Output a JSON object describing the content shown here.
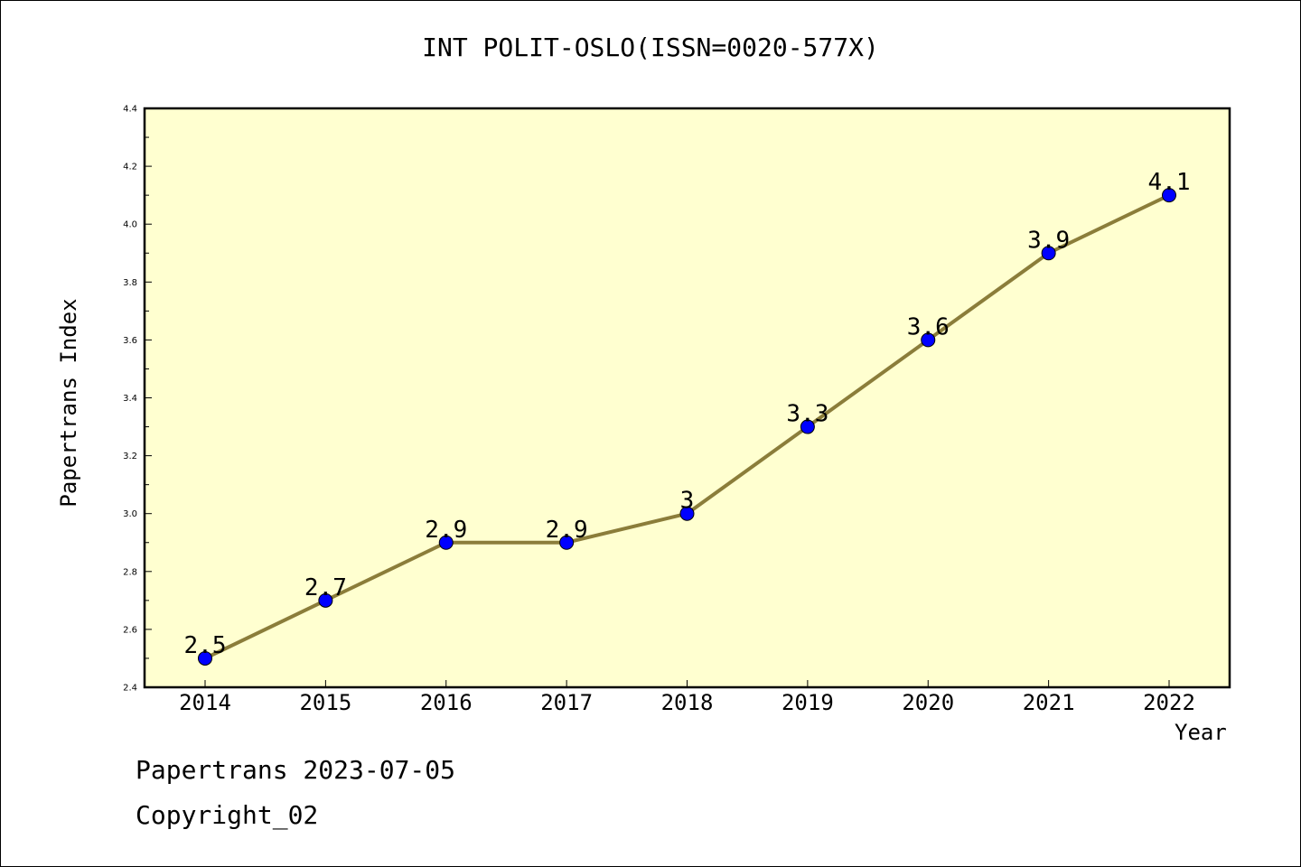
{
  "title": "INT POLIT-OSLO(ISSN=0020-577X)",
  "footer": {
    "line1": "Papertrans 2023-07-05",
    "line2": "Copyright_02"
  },
  "colors": {
    "plot_background": "#ffffd0",
    "line": "#8b7d3a",
    "marker": "#0000ff",
    "marker_edge": "#000000"
  },
  "chart_data": {
    "type": "line",
    "title": "INT POLIT-OSLO(ISSN=0020-577X)",
    "xlabel": "Year",
    "ylabel": "Papertrans Index",
    "categories": [
      "2014",
      "2015",
      "2016",
      "2017",
      "2018",
      "2019",
      "2020",
      "2021",
      "2022"
    ],
    "series": [
      {
        "values": [
          2.5,
          2.7,
          2.9,
          2.9,
          3.0,
          3.3,
          3.6,
          3.9,
          4.1
        ],
        "labels": [
          "2.5",
          "2.7",
          "2.9",
          "2.9",
          "3",
          "3.3",
          "3.6",
          "3.9",
          "4.1"
        ]
      }
    ],
    "ylim": [
      2.4,
      4.4
    ],
    "yticks": [
      "2.4",
      "2.6",
      "2.8",
      "3.0",
      "3.2",
      "3.4",
      "3.6",
      "3.8",
      "4.0",
      "4.2",
      "4.4"
    ],
    "grid": false,
    "legend": "none"
  }
}
